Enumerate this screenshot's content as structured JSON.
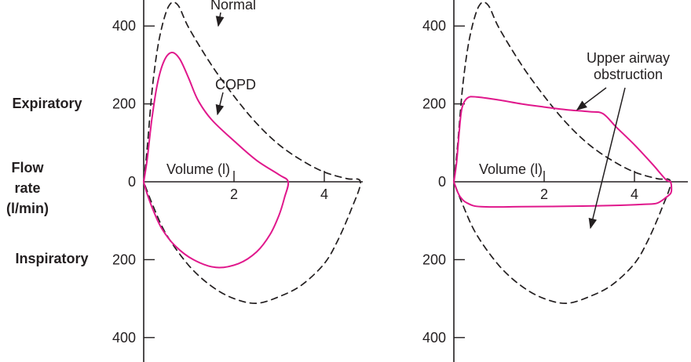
{
  "side_labels": {
    "expiratory": "Expiratory",
    "flow_rate_line1": "Flow",
    "flow_rate_line2": "rate",
    "flow_rate_line3": "(l/min)",
    "inspiratory": "Inspiratory"
  },
  "colors": {
    "axis": "#231f20",
    "normal_curve": "#231f20",
    "pathology_curve": "#e0188c"
  },
  "chart_data": [
    {
      "type": "line",
      "panel": "left",
      "xlabel": "Volume (l)",
      "ylabel": "Flow rate (l/min)",
      "xlim": [
        0,
        5
      ],
      "ylim": [
        -450,
        450
      ],
      "xticks": [
        {
          "value": 2,
          "label": "2"
        },
        {
          "value": 4,
          "label": "4"
        }
      ],
      "yticks": [
        {
          "value": 400,
          "label": "400"
        },
        {
          "value": 200,
          "label": "200"
        },
        {
          "value": 0,
          "label": "0"
        },
        {
          "value": -200,
          "label": "200"
        },
        {
          "value": -400,
          "label": "400"
        }
      ],
      "series": [
        {
          "name": "Normal",
          "style": "dashed",
          "color": "#231f20",
          "points": [
            [
              0,
              0
            ],
            [
              0.08,
              90
            ],
            [
              0.2,
              250
            ],
            [
              0.35,
              370
            ],
            [
              0.55,
              450
            ],
            [
              0.75,
              455
            ],
            [
              1.0,
              395
            ],
            [
              1.5,
              300
            ],
            [
              2.0,
              220
            ],
            [
              2.5,
              150
            ],
            [
              3.0,
              95
            ],
            [
              3.5,
              55
            ],
            [
              4.0,
              25
            ],
            [
              4.5,
              8
            ],
            [
              4.8,
              0
            ],
            [
              4.6,
              -70
            ],
            [
              4.3,
              -150
            ],
            [
              4.0,
              -210
            ],
            [
              3.5,
              -265
            ],
            [
              3.0,
              -295
            ],
            [
              2.5,
              -312
            ],
            [
              2.0,
              -300
            ],
            [
              1.5,
              -268
            ],
            [
              1.0,
              -215
            ],
            [
              0.5,
              -135
            ],
            [
              0.2,
              -60
            ],
            [
              0,
              0
            ]
          ]
        },
        {
          "name": "COPD",
          "style": "solid",
          "color": "#e0188c",
          "points": [
            [
              0,
              0
            ],
            [
              0.08,
              60
            ],
            [
              0.18,
              160
            ],
            [
              0.3,
              250
            ],
            [
              0.45,
              310
            ],
            [
              0.62,
              332
            ],
            [
              0.8,
              315
            ],
            [
              1.0,
              265
            ],
            [
              1.2,
              210
            ],
            [
              1.5,
              160
            ],
            [
              2.0,
              105
            ],
            [
              2.5,
              55
            ],
            [
              3.0,
              18
            ],
            [
              3.2,
              0
            ],
            [
              3.12,
              -40
            ],
            [
              3.0,
              -85
            ],
            [
              2.8,
              -135
            ],
            [
              2.5,
              -180
            ],
            [
              2.1,
              -210
            ],
            [
              1.6,
              -220
            ],
            [
              1.1,
              -200
            ],
            [
              0.7,
              -165
            ],
            [
              0.4,
              -120
            ],
            [
              0.2,
              -70
            ],
            [
              0.06,
              -25
            ],
            [
              0,
              0
            ]
          ]
        }
      ],
      "annotations": [
        {
          "text": "Normal",
          "target_series": "Normal"
        },
        {
          "text": "COPD",
          "target_series": "COPD"
        }
      ]
    },
    {
      "type": "line",
      "panel": "right",
      "xlabel": "Volume (l)",
      "xlim": [
        0,
        5
      ],
      "ylim": [
        -450,
        450
      ],
      "xticks": [
        {
          "value": 2,
          "label": "2"
        },
        {
          "value": 4,
          "label": "4"
        }
      ],
      "yticks": [
        {
          "value": 400,
          "label": "400"
        },
        {
          "value": 200,
          "label": "200"
        },
        {
          "value": 0,
          "label": "0"
        },
        {
          "value": -200,
          "label": "200"
        },
        {
          "value": -400,
          "label": "400"
        }
      ],
      "series": [
        {
          "name": "Normal",
          "style": "dashed",
          "color": "#231f20",
          "points": [
            [
              0,
              0
            ],
            [
              0.08,
              90
            ],
            [
              0.2,
              250
            ],
            [
              0.35,
              370
            ],
            [
              0.55,
              450
            ],
            [
              0.75,
              455
            ],
            [
              1.0,
              395
            ],
            [
              1.5,
              300
            ],
            [
              2.0,
              220
            ],
            [
              2.5,
              150
            ],
            [
              3.0,
              95
            ],
            [
              3.5,
              55
            ],
            [
              4.0,
              25
            ],
            [
              4.5,
              8
            ],
            [
              4.8,
              0
            ],
            [
              4.6,
              -70
            ],
            [
              4.3,
              -150
            ],
            [
              4.0,
              -210
            ],
            [
              3.5,
              -265
            ],
            [
              3.0,
              -295
            ],
            [
              2.5,
              -312
            ],
            [
              2.0,
              -300
            ],
            [
              1.5,
              -268
            ],
            [
              1.0,
              -215
            ],
            [
              0.5,
              -135
            ],
            [
              0.2,
              -60
            ],
            [
              0,
              0
            ]
          ]
        },
        {
          "name": "Upper airway obstruction",
          "style": "solid",
          "color": "#e0188c",
          "points": [
            [
              0,
              0
            ],
            [
              0.06,
              50
            ],
            [
              0.12,
              130
            ],
            [
              0.18,
              190
            ],
            [
              0.3,
              215
            ],
            [
              0.5,
              218
            ],
            [
              1.0,
              210
            ],
            [
              1.5,
              200
            ],
            [
              2.0,
              192
            ],
            [
              2.5,
              185
            ],
            [
              3.0,
              180
            ],
            [
              3.3,
              175
            ],
            [
              3.6,
              140
            ],
            [
              4.0,
              95
            ],
            [
              4.4,
              45
            ],
            [
              4.7,
              5
            ],
            [
              4.8,
              0
            ],
            [
              4.82,
              -20
            ],
            [
              4.8,
              -30
            ],
            [
              4.7,
              -40
            ],
            [
              4.5,
              -55
            ],
            [
              4.2,
              -58
            ],
            [
              3.5,
              -61
            ],
            [
              2.5,
              -63
            ],
            [
              1.5,
              -64
            ],
            [
              0.6,
              -64
            ],
            [
              0.3,
              -55
            ],
            [
              0.15,
              -40
            ],
            [
              0.06,
              -20
            ],
            [
              0,
              0
            ]
          ]
        }
      ],
      "annotations": [
        {
          "text_lines": [
            "Upper airway",
            "obstruction"
          ],
          "target_series": "Upper airway obstruction"
        }
      ]
    }
  ]
}
